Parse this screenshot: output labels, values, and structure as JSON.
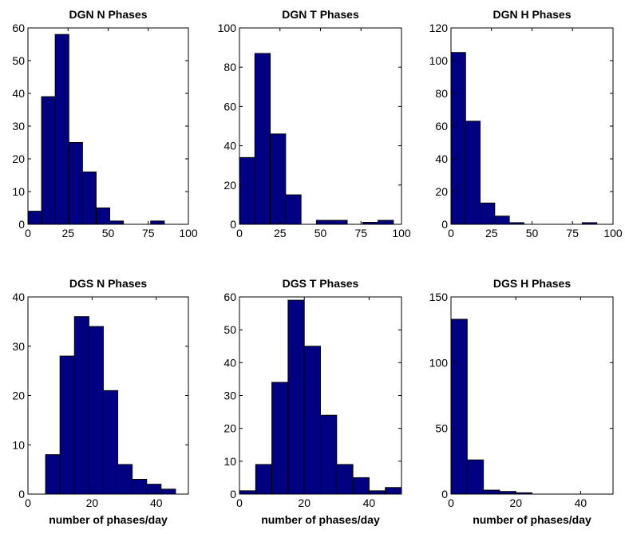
{
  "colors": {
    "bar_fill": "#000080",
    "bar_stroke": "#000000",
    "axes": "#000000",
    "background": "#ffffff"
  },
  "chart_data": [
    {
      "type": "bar",
      "title": "DGN N Phases",
      "xlabel": "",
      "xlim": [
        0,
        100
      ],
      "ylim": [
        0,
        60
      ],
      "xticks": [
        0,
        25,
        50,
        75,
        100
      ],
      "yticks": [
        0,
        10,
        20,
        30,
        40,
        50,
        60
      ],
      "xtick_labels": [
        "0",
        "25",
        "50",
        "75",
        "100"
      ],
      "ytick_labels": [
        "0",
        "10",
        "20",
        "30",
        "40",
        "50",
        "60"
      ],
      "bin_edges": [
        0,
        8.5,
        17,
        25.5,
        34,
        42.5,
        51,
        59.5,
        68,
        76.5,
        85,
        93.5
      ],
      "values": [
        4,
        39,
        58,
        25,
        16,
        5,
        1,
        0,
        0,
        1,
        0
      ],
      "grid": false
    },
    {
      "type": "bar",
      "title": "DGN T Phases",
      "xlabel": "",
      "xlim": [
        0,
        100
      ],
      "ylim": [
        0,
        100
      ],
      "xticks": [
        0,
        25,
        50,
        75,
        100
      ],
      "yticks": [
        0,
        20,
        40,
        60,
        80,
        100
      ],
      "xtick_labels": [
        "0",
        "25",
        "50",
        "75",
        "100"
      ],
      "ytick_labels": [
        "0",
        "20",
        "40",
        "60",
        "80",
        "100"
      ],
      "bin_edges": [
        0,
        9.5,
        19,
        28.5,
        38,
        47.5,
        57,
        66.5,
        76,
        85.5,
        95,
        104.5
      ],
      "values": [
        34,
        87,
        46,
        15,
        0,
        2,
        2,
        0,
        1,
        2,
        0
      ],
      "grid": false
    },
    {
      "type": "bar",
      "title": "DGN H Phases",
      "xlabel": "",
      "xlim": [
        0,
        100
      ],
      "ylim": [
        0,
        120
      ],
      "xticks": [
        0,
        25,
        50,
        75,
        100
      ],
      "yticks": [
        0,
        20,
        40,
        60,
        80,
        100,
        120
      ],
      "xtick_labels": [
        "0",
        "25",
        "50",
        "75",
        "100"
      ],
      "ytick_labels": [
        "0",
        "20",
        "40",
        "60",
        "80",
        "100",
        "120"
      ],
      "bin_edges": [
        0,
        9,
        18,
        27,
        36,
        45,
        54,
        63,
        72,
        81,
        90
      ],
      "values": [
        105,
        63,
        13,
        5,
        1,
        0,
        0,
        0,
        0,
        1
      ],
      "grid": false
    },
    {
      "type": "bar",
      "title": "DGS N Phases",
      "xlabel": "number of phases/day",
      "xlim": [
        0,
        50
      ],
      "ylim": [
        0,
        40
      ],
      "xticks": [
        0,
        20,
        40
      ],
      "yticks": [
        0,
        10,
        20,
        30,
        40
      ],
      "xtick_labels": [
        "0",
        "20",
        "40"
      ],
      "ytick_labels": [
        "0",
        "10",
        "20",
        "30",
        "40"
      ],
      "bin_edges": [
        5.5,
        10,
        14.5,
        19,
        23.5,
        28,
        32.5,
        37,
        41.5,
        46,
        50.5
      ],
      "values": [
        8,
        28,
        36,
        34,
        21,
        6,
        3,
        2,
        1,
        0
      ],
      "grid": false
    },
    {
      "type": "bar",
      "title": "DGS T Phases",
      "xlabel": "number of phases/day",
      "xlim": [
        0,
        50
      ],
      "ylim": [
        0,
        60
      ],
      "xticks": [
        0,
        20,
        40
      ],
      "yticks": [
        0,
        10,
        20,
        30,
        40,
        50,
        60
      ],
      "xtick_labels": [
        "0",
        "20",
        "40"
      ],
      "ytick_labels": [
        "0",
        "10",
        "20",
        "30",
        "40",
        "50",
        "60"
      ],
      "bin_edges": [
        0,
        5,
        10,
        15,
        20,
        25,
        30,
        35,
        40,
        45,
        50
      ],
      "values": [
        1,
        9,
        34,
        59,
        45,
        24,
        9,
        5,
        1,
        2
      ],
      "grid": false
    },
    {
      "type": "bar",
      "title": "DGS H Phases",
      "xlabel": "number of phases/day",
      "xlim": [
        0,
        50
      ],
      "ylim": [
        0,
        150
      ],
      "xticks": [
        0,
        20,
        40
      ],
      "yticks": [
        0,
        50,
        100,
        150
      ],
      "xtick_labels": [
        "0",
        "20",
        "40"
      ],
      "ytick_labels": [
        "0",
        "50",
        "100",
        "150"
      ],
      "bin_edges": [
        0,
        5,
        10,
        15,
        20,
        25,
        30,
        35,
        40,
        45,
        50
      ],
      "values": [
        133,
        26,
        3,
        2,
        1,
        0,
        0,
        0,
        0,
        0
      ],
      "grid": false
    }
  ]
}
